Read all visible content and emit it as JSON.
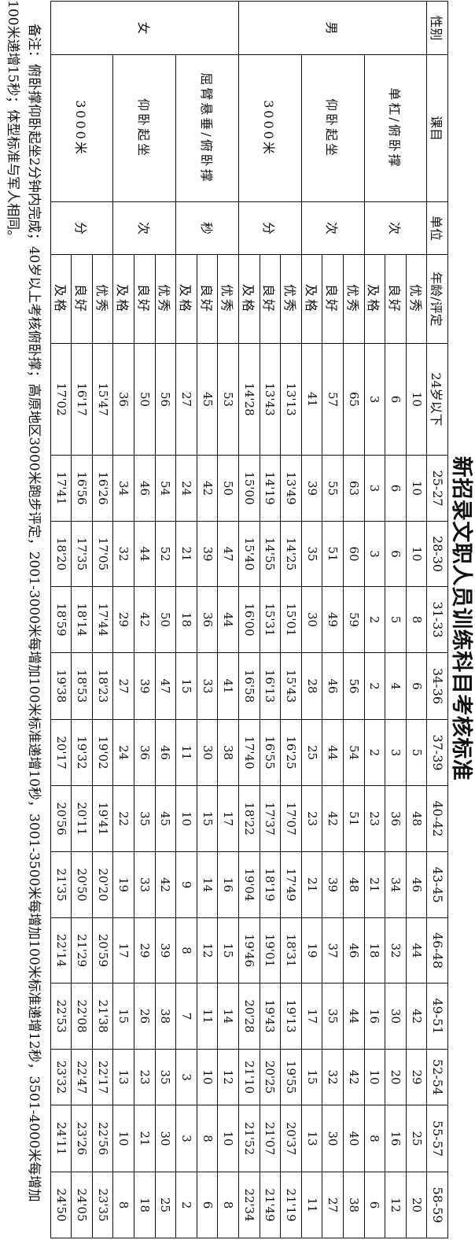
{
  "title": "新招录文职人员训练科目考核标准",
  "header": {
    "gender": "性别",
    "subject": "课目",
    "unit": "单位",
    "rating": "年龄/评定",
    "ages": [
      "24岁以下",
      "25-27",
      "28-30",
      "31-33",
      "34-36",
      "37-39",
      "40-42",
      "43-45",
      "46-48",
      "49-51",
      "52-54",
      "55-57",
      "58-59"
    ]
  },
  "groups": [
    {
      "gender": "男",
      "subjects": [
        {
          "name": "单杠/俯卧撑",
          "unit": "次",
          "rows": [
            {
              "rating": "优秀",
              "values": [
                "10",
                "10",
                "10",
                "8",
                "6",
                "5",
                "48",
                "46",
                "44",
                "42",
                "29",
                "25",
                "20"
              ]
            },
            {
              "rating": "良好",
              "values": [
                "6",
                "6",
                "6",
                "5",
                "4",
                "3",
                "36",
                "34",
                "32",
                "30",
                "20",
                "16",
                "12"
              ]
            },
            {
              "rating": "及格",
              "values": [
                "3",
                "3",
                "3",
                "2",
                "2",
                "2",
                "23",
                "21",
                "18",
                "16",
                "10",
                "8",
                "6"
              ]
            }
          ]
        },
        {
          "name": "仰卧起坐",
          "unit": "次",
          "rows": [
            {
              "rating": "优秀",
              "values": [
                "65",
                "63",
                "60",
                "59",
                "56",
                "54",
                "51",
                "48",
                "46",
                "44",
                "42",
                "40",
                "38"
              ]
            },
            {
              "rating": "良好",
              "values": [
                "57",
                "55",
                "51",
                "49",
                "46",
                "44",
                "42",
                "39",
                "37",
                "35",
                "32",
                "30",
                "27"
              ]
            },
            {
              "rating": "及格",
              "values": [
                "41",
                "39",
                "35",
                "30",
                "28",
                "25",
                "23",
                "21",
                "19",
                "17",
                "15",
                "13",
                "11"
              ]
            }
          ]
        },
        {
          "name": "3000米",
          "unit": "分",
          "rows": [
            {
              "rating": "优秀",
              "values": [
                "13'13",
                "13'49",
                "14'25",
                "15'01",
                "15'43",
                "16'25",
                "17'07",
                "17'49",
                "18'31",
                "19'13",
                "19'55",
                "20'37",
                "21'19"
              ]
            },
            {
              "rating": "良好",
              "values": [
                "13'43",
                "14'19",
                "14'55",
                "15'31",
                "16'13",
                "16'55",
                "17'37",
                "18'19",
                "19'01",
                "19'43",
                "20'25",
                "21'07",
                "21'49"
              ]
            },
            {
              "rating": "及格",
              "values": [
                "14'28",
                "15'00",
                "15'40",
                "16'00",
                "16'58",
                "17'40",
                "18'22",
                "19'04",
                "19'46",
                "20'28",
                "21'10",
                "21'52",
                "22'34"
              ]
            }
          ]
        }
      ]
    },
    {
      "gender": "女",
      "subjects": [
        {
          "name": "屈臂悬垂/俯卧撑",
          "unit": "秒",
          "rows": [
            {
              "rating": "优秀",
              "values": [
                "53",
                "50",
                "47",
                "44",
                "41",
                "38",
                "17",
                "16",
                "15",
                "14",
                "12",
                "10",
                "8"
              ]
            },
            {
              "rating": "良好",
              "values": [
                "45",
                "42",
                "39",
                "36",
                "33",
                "30",
                "15",
                "14",
                "12",
                "11",
                "10",
                "8",
                "6"
              ]
            },
            {
              "rating": "及格",
              "values": [
                "27",
                "24",
                "21",
                "18",
                "15",
                "11",
                "10",
                "9",
                "8",
                "7",
                "3",
                "3",
                "2"
              ]
            }
          ]
        },
        {
          "name": "仰卧起坐",
          "unit": "次",
          "rows": [
            {
              "rating": "优秀",
              "values": [
                "56",
                "54",
                "52",
                "50",
                "47",
                "46",
                "45",
                "42",
                "39",
                "38",
                "35",
                "30",
                "25"
              ]
            },
            {
              "rating": "良好",
              "values": [
                "50",
                "46",
                "44",
                "42",
                "39",
                "36",
                "35",
                "33",
                "29",
                "26",
                "23",
                "21",
                "18"
              ]
            },
            {
              "rating": "及格",
              "values": [
                "36",
                "34",
                "32",
                "29",
                "27",
                "24",
                "22",
                "19",
                "17",
                "15",
                "13",
                "10",
                "8"
              ]
            }
          ]
        },
        {
          "name": "3000米",
          "unit": "分",
          "rows": [
            {
              "rating": "优秀",
              "values": [
                "15'47",
                "16'26",
                "17'05",
                "17'44",
                "18'23",
                "19'02",
                "19'41",
                "20'20",
                "20'59",
                "21'38",
                "22'17",
                "22'56",
                "23'35"
              ]
            },
            {
              "rating": "良好",
              "values": [
                "16'17",
                "16'56",
                "17'35",
                "18'14",
                "18'53",
                "19'32",
                "20'11",
                "20'50",
                "21'29",
                "22'08",
                "22'47",
                "23'26",
                "24'05"
              ]
            },
            {
              "rating": "及格",
              "values": [
                "17'02",
                "17'41",
                "18'20",
                "18'59",
                "19'38",
                "20'17",
                "20'56",
                "21'35",
                "22'14",
                "22'53",
                "23'32",
                "24'11",
                "24'50"
              ]
            }
          ]
        }
      ]
    }
  ],
  "notes": {
    "line1": "备注：俯卧撑仰卧起坐2分钟内完成；40岁以上考核俯卧撑；高原地区3000米跑步评定，2001-3000米每增加100米标准递增10秒，3001-3500米每增加100米标准递增12秒，3501-4000米每增加",
    "line2": "100米递增15秒；体型标准与军人相同。"
  }
}
